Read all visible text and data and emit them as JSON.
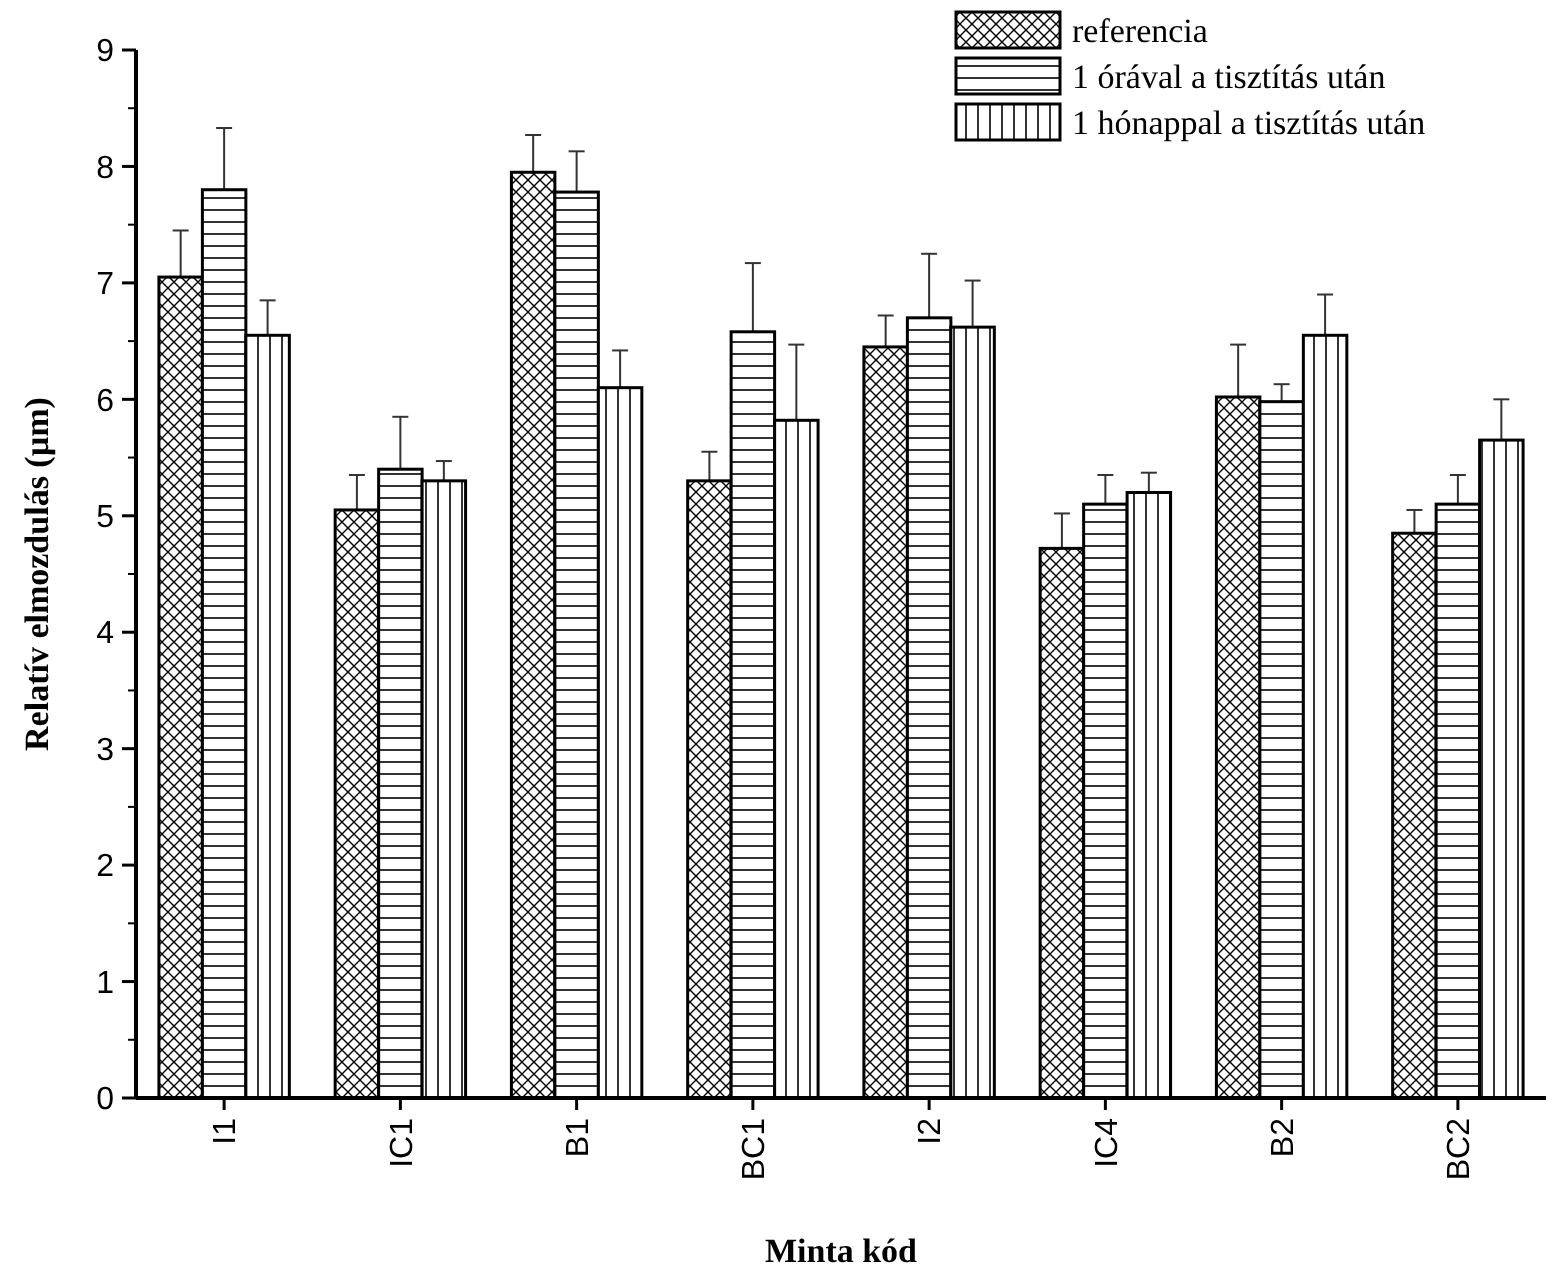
{
  "chart_data": {
    "type": "bar",
    "xlabel": "Minta kód",
    "ylabel": "Relatív elmozdulás (µm)",
    "categories": [
      "I1",
      "IC1",
      "B1",
      "BC1",
      "I2",
      "IC4",
      "B2",
      "BC2"
    ],
    "series": [
      {
        "name": "referencia",
        "color": "#000000",
        "values": [
          7.05,
          5.05,
          7.95,
          5.3,
          6.45,
          4.72,
          6.02,
          4.85
        ],
        "errors": [
          0.4,
          0.3,
          0.32,
          0.25,
          0.27,
          0.3,
          0.45,
          0.2
        ]
      },
      {
        "name": "1 órával a tisztítás után",
        "color": "#000000",
        "values": [
          7.8,
          5.4,
          7.78,
          6.58,
          6.7,
          5.1,
          5.98,
          5.1
        ],
        "errors": [
          0.53,
          0.45,
          0.35,
          0.59,
          0.55,
          0.25,
          0.15,
          0.25
        ]
      },
      {
        "name": "1 hónappal a tisztítás után",
        "color": "#000000",
        "values": [
          6.55,
          5.3,
          6.1,
          5.82,
          6.62,
          5.2,
          6.55,
          5.65
        ],
        "errors": [
          0.3,
          0.17,
          0.32,
          0.65,
          0.4,
          0.17,
          0.35,
          0.35
        ]
      }
    ],
    "ylim": [
      0,
      9
    ],
    "yticks": [
      0,
      1,
      2,
      3,
      4,
      5,
      6,
      7,
      8,
      9
    ],
    "legend": "top right"
  }
}
